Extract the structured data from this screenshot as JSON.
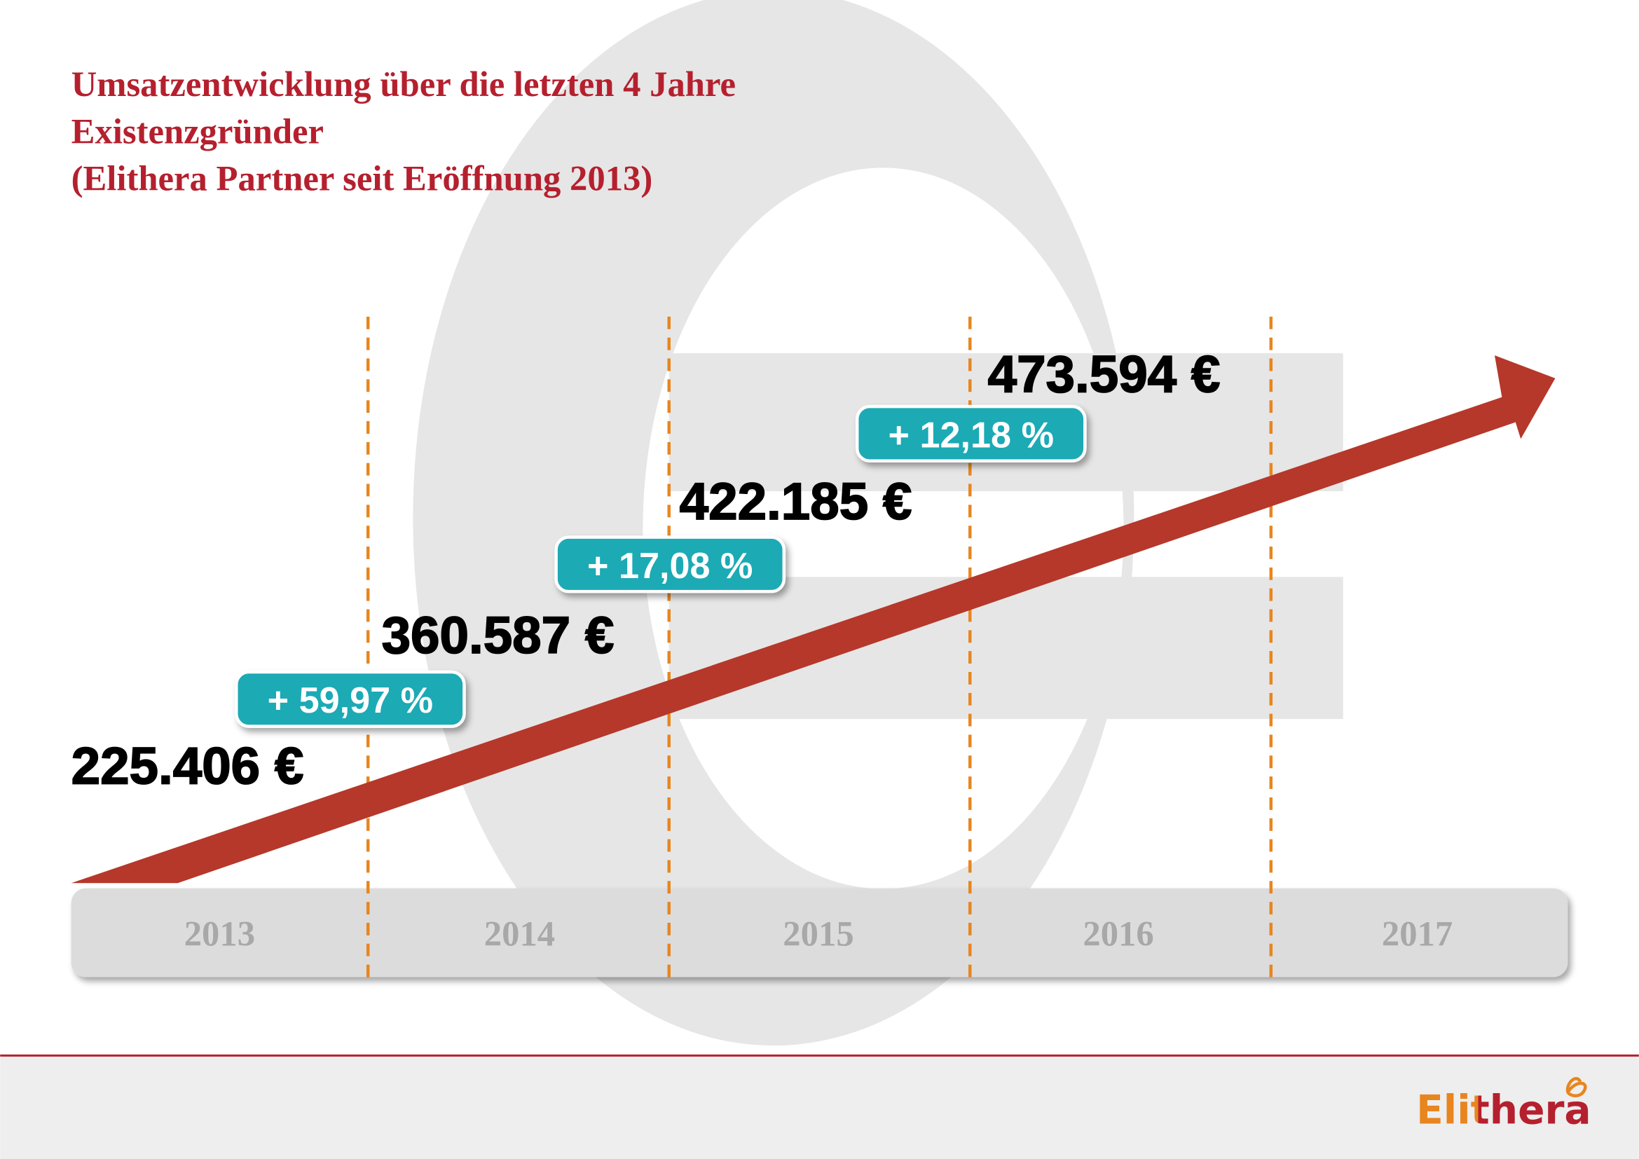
{
  "title": [
    "Umsatzentwicklung über die letzten 4 Jahre",
    "Existenzgründer",
    "(Elithera Partner seit Eröffnung 2013)"
  ],
  "years": [
    "2013",
    "2014",
    "2015",
    "2016",
    "2017"
  ],
  "revenues": [
    "225.406 €",
    "360.587 €",
    "422.185 €",
    "473.594 €"
  ],
  "growth": [
    "+ 59,97 %",
    "+ 17,08 %",
    "+ 12,18 %"
  ],
  "logo": "Elithera"
}
